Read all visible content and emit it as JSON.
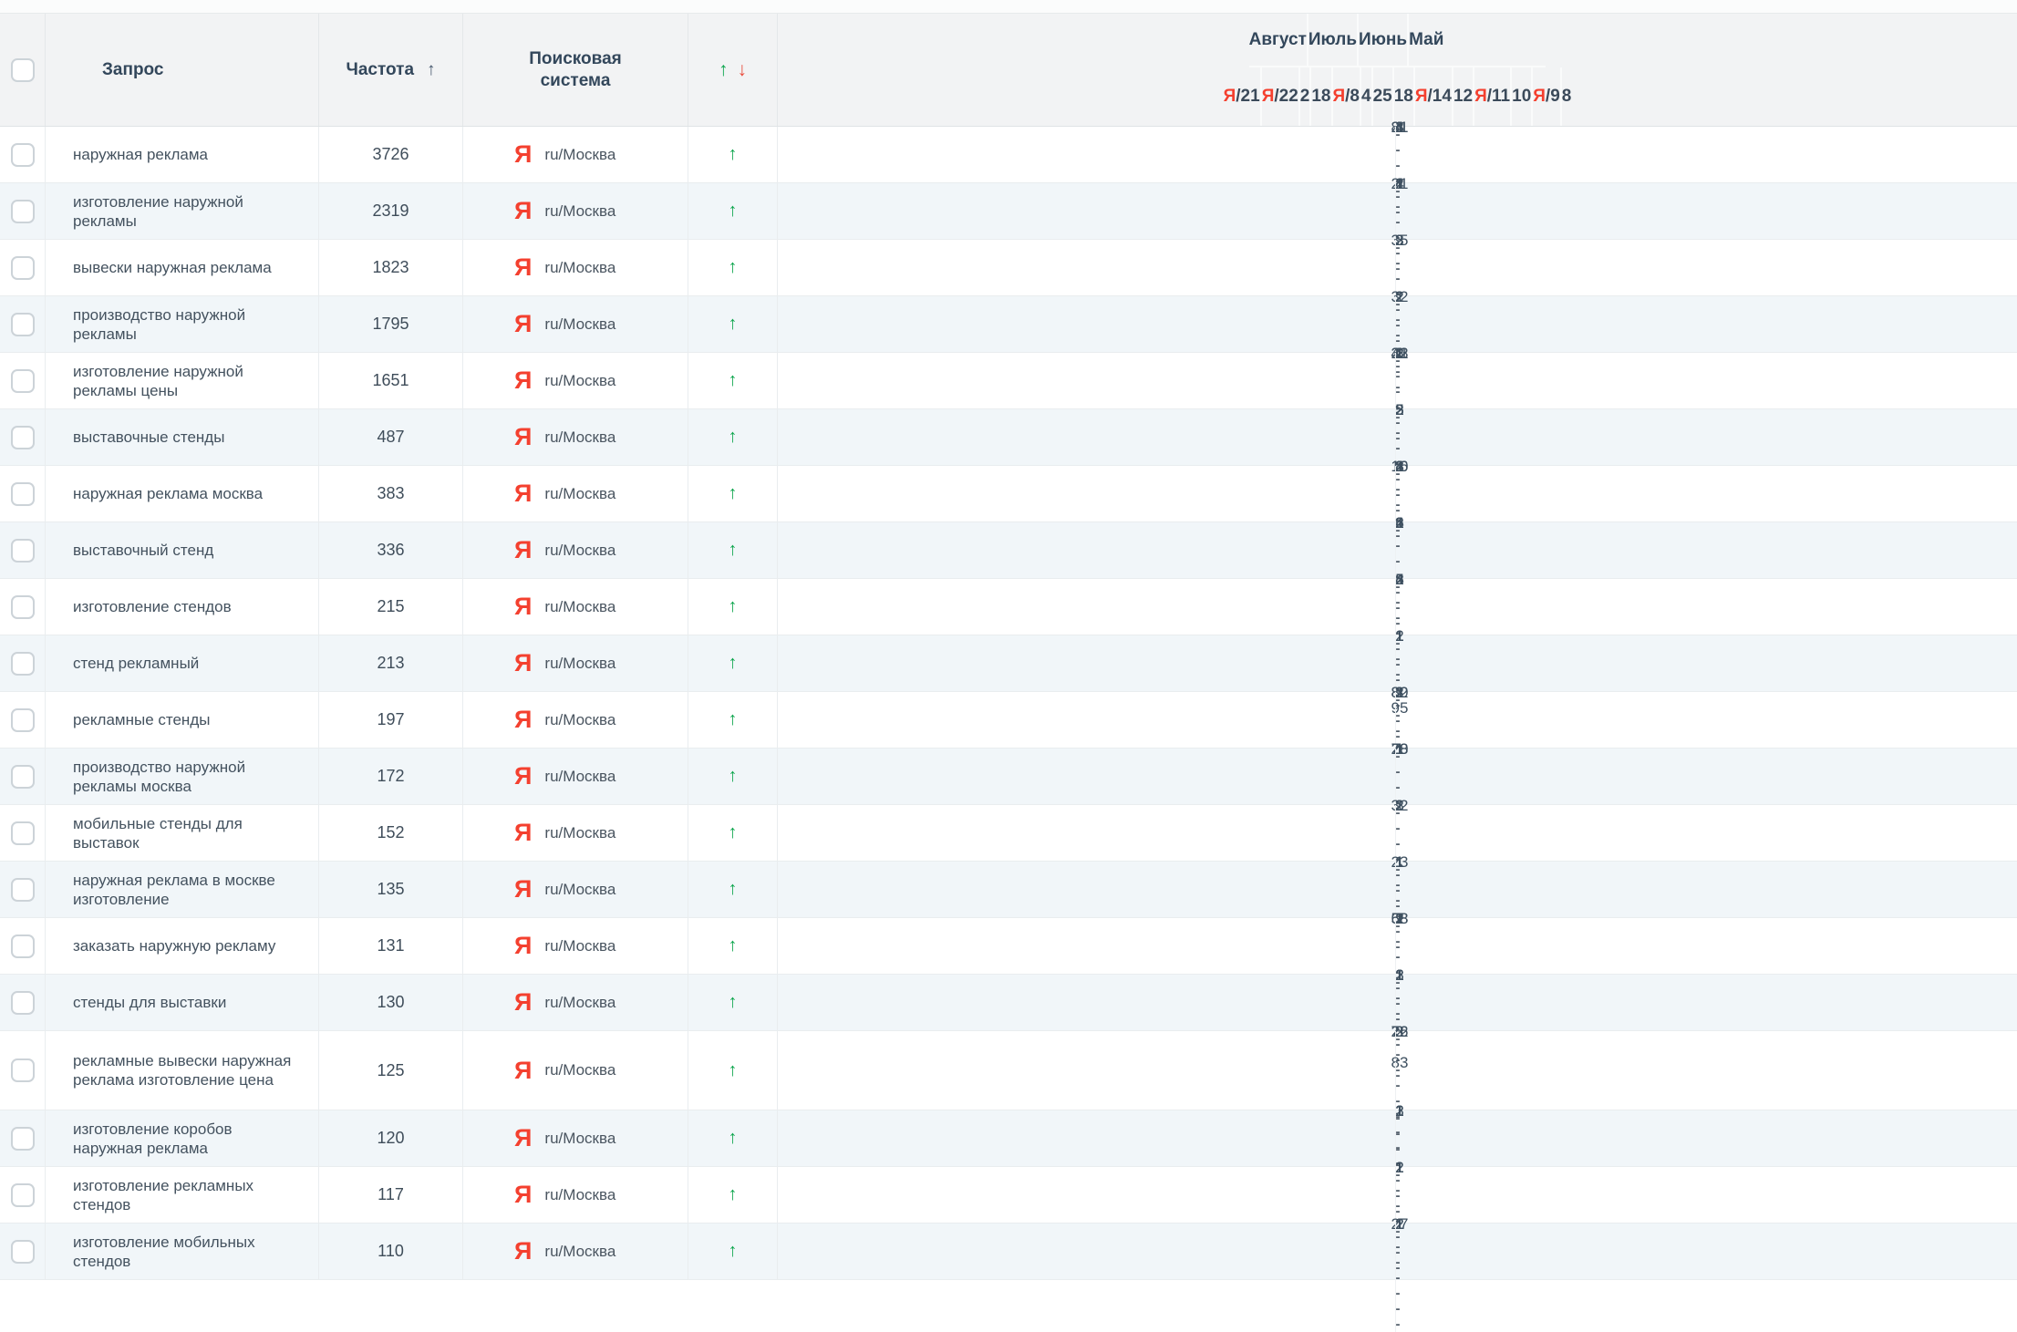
{
  "header": {
    "query": "Запрос",
    "frequency": "Частота",
    "frequency_sort_icon": "↑",
    "search_engine": "Поисковая система",
    "sort_up_icon": "↑",
    "sort_down_icon": "↓",
    "months": [
      {
        "label": "Август",
        "span": 1
      },
      {
        "label": "Июль",
        "span": 2
      },
      {
        "label": "Июнь",
        "span": 3
      },
      {
        "label": "Май",
        "span": 8
      }
    ],
    "dates": [
      {
        "ya": true,
        "day": "21"
      },
      {
        "ya": true,
        "day": "22"
      },
      {
        "ya": false,
        "day": "2"
      },
      {
        "ya": false,
        "day": "18"
      },
      {
        "ya": true,
        "day": "8"
      },
      {
        "ya": false,
        "day": "4"
      },
      {
        "ya": false,
        "day": "25"
      },
      {
        "ya": false,
        "day": "18"
      },
      {
        "ya": true,
        "day": "14"
      },
      {
        "ya": false,
        "day": "12"
      },
      {
        "ya": true,
        "day": "11"
      },
      {
        "ya": false,
        "day": "10"
      },
      {
        "ya": true,
        "day": "9"
      },
      {
        "ya": false,
        "day": "8"
      }
    ],
    "yandex_prefix": "Я"
  },
  "engine": {
    "icon": "Я",
    "label": "ru/Москва"
  },
  "row_trend_icon": "↑",
  "no_data": "-",
  "palette": {
    "G1": "#40e687",
    "G2": "#60e493",
    "G3": "#96e9b2",
    "G4": "#bdeec9",
    "G5": "#dcf4e0",
    "M1": "#6cd794",
    "M2": "#9edfb0",
    "SG": "#abdcb8",
    "SG2": "#c9dacc",
    "GY": "#dcdcdc",
    "GY2": "#efecec",
    "TP": "#d8c9c7",
    "DR": "#e3a0a0",
    "P1": "#f8d4d6",
    "P2": "#f6c5c9",
    "P3": "#f8b0b0",
    "S": "#f89595",
    "R": "#f88282"
  },
  "rows": [
    {
      "query": "наружная реклама",
      "freq": "3726",
      "cells": [
        [
          "4",
          "G3"
        ],
        [
          "4",
          "G3"
        ],
        [
          "4",
          "G3"
        ],
        [
          "1",
          "G1"
        ],
        [
          "3",
          "G3"
        ],
        [
          "21",
          "P1"
        ],
        [
          "3",
          "G3"
        ],
        [
          "81",
          "S"
        ],
        [
          "-",
          ""
        ],
        [
          "-",
          ""
        ],
        [
          "-",
          ""
        ],
        [
          "-",
          ""
        ],
        [
          "-",
          ""
        ],
        [
          "-",
          ""
        ]
      ]
    },
    {
      "query": "изготовление наружной рекламы",
      "freq": "2319",
      "cells": [
        [
          "1",
          "M1"
        ],
        [
          "4",
          "SG"
        ],
        [
          "1",
          "M1"
        ],
        [
          "1",
          "M1"
        ],
        [
          "1",
          "M1"
        ],
        [
          "2",
          "M1"
        ],
        [
          "21",
          "GY"
        ],
        [
          "4",
          "SG"
        ],
        [
          "-",
          ""
        ],
        [
          "-",
          ""
        ],
        [
          "-",
          ""
        ],
        [
          "-",
          ""
        ],
        [
          "-",
          ""
        ],
        [
          "-",
          ""
        ]
      ]
    },
    {
      "query": "вывески наружная реклама",
      "freq": "1823",
      "cells": [
        [
          "3",
          "G3"
        ],
        [
          "35",
          "P2"
        ],
        [
          "3",
          "G3"
        ],
        [
          "2",
          "G2"
        ],
        [
          "-",
          ""
        ],
        [
          "-",
          ""
        ],
        [
          "-",
          ""
        ],
        [
          "-",
          ""
        ],
        [
          "-",
          ""
        ],
        [
          "-",
          ""
        ],
        [
          "-",
          ""
        ],
        [
          "-",
          ""
        ],
        [
          "-",
          ""
        ],
        [
          "-",
          ""
        ]
      ]
    },
    {
      "query": "производство наружной рекламы",
      "freq": "1795",
      "cells": [
        [
          "2",
          "M1"
        ],
        [
          "1",
          "M1"
        ],
        [
          "1",
          "M1"
        ],
        [
          "1",
          "M1"
        ],
        [
          "2",
          "M1"
        ],
        [
          "1",
          "M1"
        ],
        [
          "1",
          "M1"
        ],
        [
          "1",
          "M1"
        ],
        [
          "32",
          "TP"
        ],
        [
          "-",
          ""
        ],
        [
          "-",
          ""
        ],
        [
          "-",
          ""
        ],
        [
          "-",
          ""
        ],
        [
          "-",
          ""
        ]
      ]
    },
    {
      "query": "изготовление наружной рекламы цены",
      "freq": "1651",
      "cells": [
        [
          "1",
          "G1"
        ],
        [
          "3",
          "G3"
        ],
        [
          "2",
          "G2"
        ],
        [
          "1",
          "G1"
        ],
        [
          "2",
          "G2"
        ],
        [
          "21",
          "P1"
        ],
        [
          "32",
          "P2"
        ],
        [
          "43",
          "P2"
        ],
        [
          "-",
          ""
        ],
        [
          "-",
          ""
        ],
        [
          "-",
          ""
        ],
        [
          "-",
          ""
        ],
        [
          "-",
          ""
        ],
        [
          "-",
          ""
        ]
      ]
    },
    {
      "query": "выставочные стенды",
      "freq": "487",
      "cells": [
        [
          "2",
          "M1"
        ],
        [
          "5",
          "G4"
        ],
        [
          "5",
          "G4"
        ],
        [
          "3",
          "G4"
        ],
        [
          "2",
          "M1"
        ],
        [
          "2",
          "M1"
        ],
        [
          "2",
          "M1"
        ],
        [
          "-",
          ""
        ],
        [
          "-",
          ""
        ],
        [
          "-",
          ""
        ],
        [
          "-",
          ""
        ],
        [
          "-",
          ""
        ],
        [
          "-",
          ""
        ],
        [
          "-",
          ""
        ]
      ]
    },
    {
      "query": "наружная реклама москва",
      "freq": "383",
      "cells": [
        [
          "2",
          "G2"
        ],
        [
          "4",
          "G4"
        ],
        [
          "1",
          "G1"
        ],
        [
          "2",
          "G2"
        ],
        [
          "3",
          "G3"
        ],
        [
          "2",
          "G2"
        ],
        [
          "10",
          "GY2"
        ],
        [
          "8",
          "G5"
        ],
        [
          "16",
          "P1"
        ],
        [
          "-",
          ""
        ],
        [
          "-",
          ""
        ],
        [
          "-",
          ""
        ],
        [
          "-",
          ""
        ],
        [
          "-",
          ""
        ]
      ]
    },
    {
      "query": "выставочный стенд",
      "freq": "336",
      "cells": [
        [
          "2",
          "M1"
        ],
        [
          "4",
          "SG"
        ],
        [
          "6",
          "SG2"
        ],
        [
          "1",
          "M1"
        ],
        [
          "2",
          "M1"
        ],
        [
          "2",
          "M1"
        ],
        [
          "2",
          "M1"
        ],
        [
          "-",
          ""
        ],
        [
          "-",
          ""
        ],
        [
          "-",
          ""
        ],
        [
          "-",
          ""
        ],
        [
          "-",
          ""
        ],
        [
          "-",
          ""
        ],
        [
          "-",
          ""
        ]
      ]
    },
    {
      "query": "изготовление стендов",
      "freq": "215",
      "cells": [
        [
          "4",
          "G4"
        ],
        [
          "2",
          "G2"
        ],
        [
          "5",
          "G4"
        ],
        [
          "2",
          "G2"
        ],
        [
          "4",
          "G4"
        ],
        [
          "3",
          "G3"
        ],
        [
          "2",
          "G2"
        ],
        [
          "-",
          ""
        ],
        [
          "-",
          ""
        ],
        [
          "-",
          ""
        ],
        [
          "-",
          ""
        ],
        [
          "-",
          ""
        ],
        [
          "-",
          ""
        ],
        [
          "-",
          ""
        ]
      ]
    },
    {
      "query": "стенд рекламный",
      "freq": "213",
      "cells": [
        [
          "1",
          "M1"
        ],
        [
          "1",
          "M1"
        ],
        [
          "1",
          "M1"
        ],
        [
          "1",
          "M1"
        ],
        [
          "2",
          "M1"
        ],
        [
          "1",
          "M1"
        ],
        [
          "1",
          "M1"
        ],
        [
          "-",
          ""
        ],
        [
          "-",
          ""
        ],
        [
          "-",
          ""
        ],
        [
          "-",
          ""
        ],
        [
          "-",
          ""
        ],
        [
          "-",
          ""
        ],
        [
          "-",
          ""
        ]
      ]
    },
    {
      "query": "рекламные стенды",
      "freq": "197",
      "cells": [
        [
          "3",
          "G3"
        ],
        [
          "1",
          "G1"
        ],
        [
          "1",
          "G1"
        ],
        [
          "1",
          "G1"
        ],
        [
          "2",
          "G2"
        ],
        [
          "1",
          "G1"
        ],
        [
          "1",
          "G1"
        ],
        [
          "80",
          "S"
        ],
        [
          "82",
          "S"
        ],
        [
          "-",
          ""
        ],
        [
          "95",
          "R"
        ],
        [
          "-",
          ""
        ],
        [
          "-",
          ""
        ],
        [
          "-",
          ""
        ]
      ]
    },
    {
      "query": "производство наружной рекламы москва",
      "freq": "172",
      "cells": [
        [
          "1",
          "M1"
        ],
        [
          "1",
          "M1"
        ],
        [
          "1",
          "M1"
        ],
        [
          "1",
          "M1"
        ],
        [
          "1",
          "M1"
        ],
        [
          "1",
          "M1"
        ],
        [
          "1",
          "M1"
        ],
        [
          "1",
          "G2"
        ],
        [
          "28",
          "TP"
        ],
        [
          "70",
          "DR"
        ],
        [
          "-",
          ""
        ],
        [
          "-",
          ""
        ],
        [
          "-",
          ""
        ],
        [
          "-",
          ""
        ]
      ]
    },
    {
      "query": "мобильные стенды для выставок",
      "freq": "152",
      "cells": [
        [
          "2",
          "G2"
        ],
        [
          "32",
          "P1"
        ],
        [
          "3",
          "G3"
        ],
        [
          "1",
          "G1"
        ],
        [
          "1",
          "G1"
        ],
        [
          "2",
          "G2"
        ],
        [
          "-",
          ""
        ],
        [
          "-",
          ""
        ],
        [
          "-",
          ""
        ],
        [
          "-",
          ""
        ],
        [
          "-",
          ""
        ],
        [
          "-",
          ""
        ],
        [
          "-",
          ""
        ],
        [
          "-",
          ""
        ]
      ]
    },
    {
      "query": "наружная реклама в москве изготовление",
      "freq": "135",
      "cells": [
        [
          "1",
          "M1"
        ],
        [
          "1",
          "M1"
        ],
        [
          "1",
          "M1"
        ],
        [
          "1",
          "M1"
        ],
        [
          "1",
          "M1"
        ],
        [
          "1",
          "M1"
        ],
        [
          "1",
          "M1"
        ],
        [
          "23",
          "GY"
        ],
        [
          "-",
          ""
        ],
        [
          "-",
          ""
        ],
        [
          "-",
          ""
        ],
        [
          "-",
          ""
        ],
        [
          "-",
          ""
        ],
        [
          "-",
          ""
        ]
      ]
    },
    {
      "query": "заказать наружную рекламу",
      "freq": "131",
      "cells": [
        [
          "1",
          "G1"
        ],
        [
          "7",
          "G5"
        ],
        [
          "1",
          "G1"
        ],
        [
          "2",
          "G2"
        ],
        [
          "2",
          "G2"
        ],
        [
          "68",
          "S"
        ],
        [
          "58",
          "P3"
        ],
        [
          "-",
          ""
        ],
        [
          "-",
          ""
        ],
        [
          "-",
          ""
        ],
        [
          "-",
          ""
        ],
        [
          "-",
          ""
        ],
        [
          "-",
          ""
        ],
        [
          "-",
          ""
        ]
      ]
    },
    {
      "query": "стенды для выставки",
      "freq": "130",
      "cells": [
        [
          "1",
          "M1"
        ],
        [
          "1",
          "M1"
        ],
        [
          "2",
          "M1"
        ],
        [
          "2",
          "M1"
        ],
        [
          "2",
          "M1"
        ],
        [
          "3",
          "M2"
        ],
        [
          "1",
          "M1"
        ],
        [
          "-",
          ""
        ],
        [
          "-",
          ""
        ],
        [
          "-",
          ""
        ],
        [
          "-",
          ""
        ],
        [
          "-",
          ""
        ],
        [
          "-",
          ""
        ],
        [
          "-",
          ""
        ]
      ]
    },
    {
      "query": "рекламные вывески наружная реклама изготовление цена",
      "freq": "125",
      "cells": [
        [
          "3",
          "G3"
        ],
        [
          "26",
          "P1"
        ],
        [
          "2",
          "G2"
        ],
        [
          "72",
          "S"
        ],
        [
          "-",
          ""
        ],
        [
          "-",
          ""
        ],
        [
          "83",
          "S"
        ],
        [
          "-",
          ""
        ],
        [
          "-",
          ""
        ],
        [
          "-",
          ""
        ],
        [
          "-",
          ""
        ],
        [
          "-",
          ""
        ],
        [
          "-",
          ""
        ],
        [
          "-",
          ""
        ]
      ]
    },
    {
      "query": "изготовление коробов наружная реклама",
      "freq": "120",
      "cells": [
        [
          "1",
          "M1"
        ],
        [
          "1",
          "M1"
        ],
        [
          "1",
          "M1"
        ],
        [
          "1",
          "M1"
        ],
        [
          "2",
          "M1"
        ],
        [
          "2",
          "M1"
        ],
        [
          "3",
          "M2"
        ],
        [
          "-",
          ""
        ],
        [
          "-",
          ""
        ],
        [
          "-",
          ""
        ],
        [
          "-",
          ""
        ],
        [
          "-",
          ""
        ],
        [
          "-",
          ""
        ],
        [
          "-",
          ""
        ]
      ]
    },
    {
      "query": "изготовление рекламных стендов",
      "freq": "117",
      "cells": [
        [
          "1",
          "G1"
        ],
        [
          "1",
          "G1"
        ],
        [
          "1",
          "G1"
        ],
        [
          "1",
          "G1"
        ],
        [
          "2",
          "G2"
        ],
        [
          "2",
          "G2"
        ],
        [
          "1",
          "G1"
        ],
        [
          "-",
          ""
        ],
        [
          "-",
          ""
        ],
        [
          "-",
          ""
        ],
        [
          "-",
          ""
        ],
        [
          "-",
          ""
        ],
        [
          "-",
          ""
        ],
        [
          "-",
          ""
        ]
      ]
    },
    {
      "query": "изготовление мобильных стендов",
      "freq": "110",
      "cells": [
        [
          "1",
          "M1"
        ],
        [
          "2",
          "M1"
        ],
        [
          "2",
          "M1"
        ],
        [
          "1",
          "M1"
        ],
        [
          "1",
          "M1"
        ],
        [
          "2",
          "M1"
        ],
        [
          "27",
          "TP"
        ],
        [
          "-",
          ""
        ],
        [
          "-",
          ""
        ],
        [
          "-",
          ""
        ],
        [
          "-",
          ""
        ],
        [
          "-",
          ""
        ],
        [
          "-",
          ""
        ],
        [
          "-",
          ""
        ]
      ]
    }
  ]
}
